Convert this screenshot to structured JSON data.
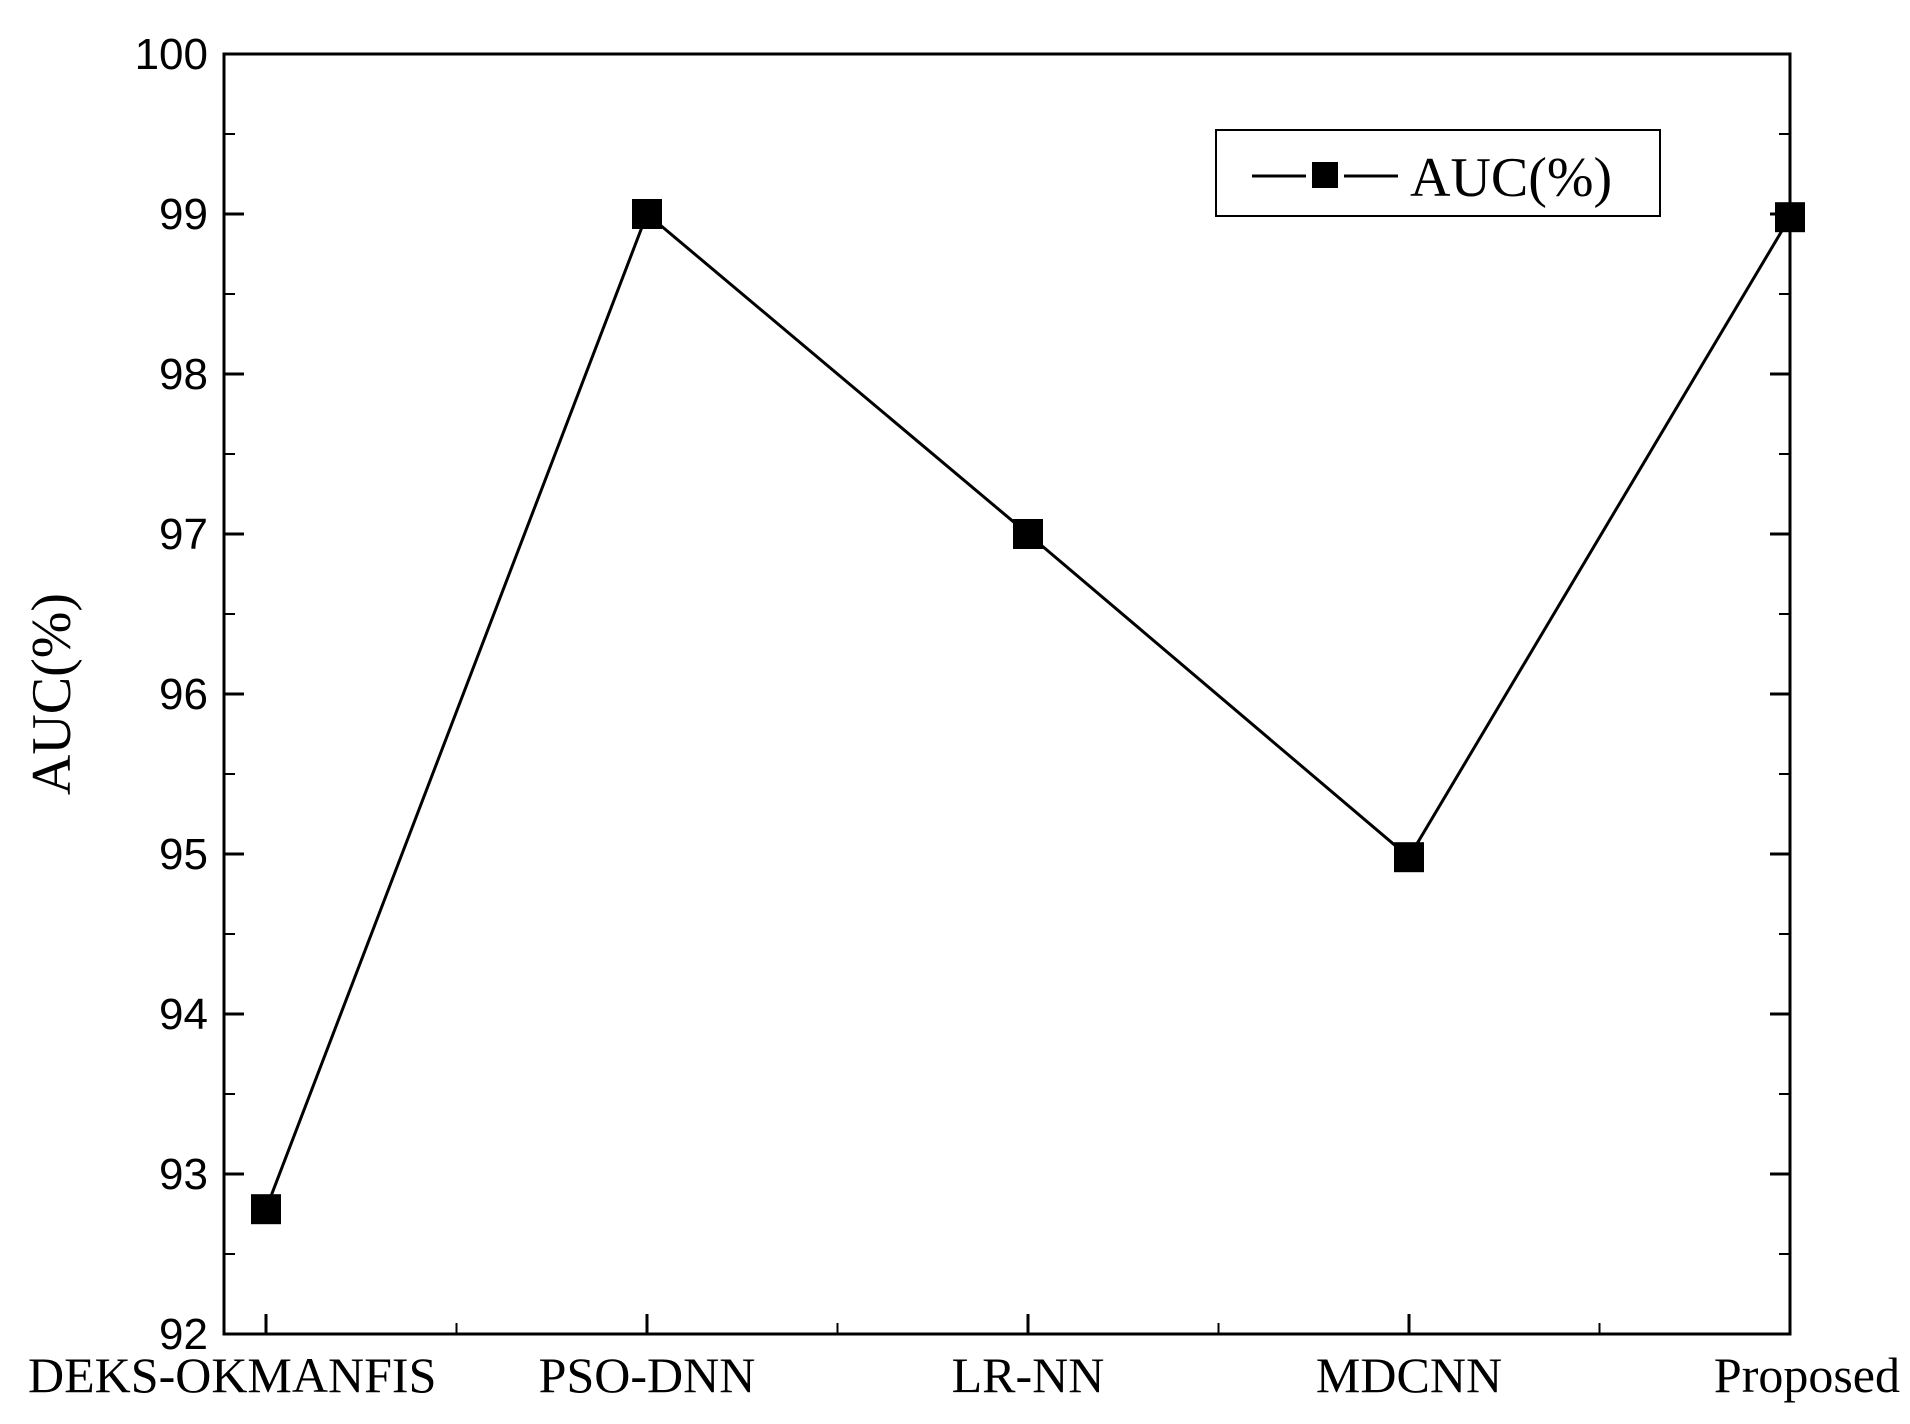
{
  "chart_data": {
    "type": "line",
    "categories": [
      "DEKS-OKMANFIS",
      "PSO-DNN",
      "LR-NN",
      "MDCNN",
      "Proposed"
    ],
    "series": [
      {
        "name": "AUC(%)",
        "values": [
          92.78,
          99.0,
          97.0,
          94.98,
          98.98
        ],
        "color": "#000000",
        "marker": "square"
      }
    ],
    "title": "",
    "xlabel": "",
    "ylabel": "AUC(%)",
    "ylim": [
      92,
      100
    ],
    "yticks": [
      "92",
      "93",
      "94",
      "95",
      "96",
      "97",
      "98",
      "99",
      "100"
    ],
    "grid": false,
    "legend_position": "top-right"
  }
}
